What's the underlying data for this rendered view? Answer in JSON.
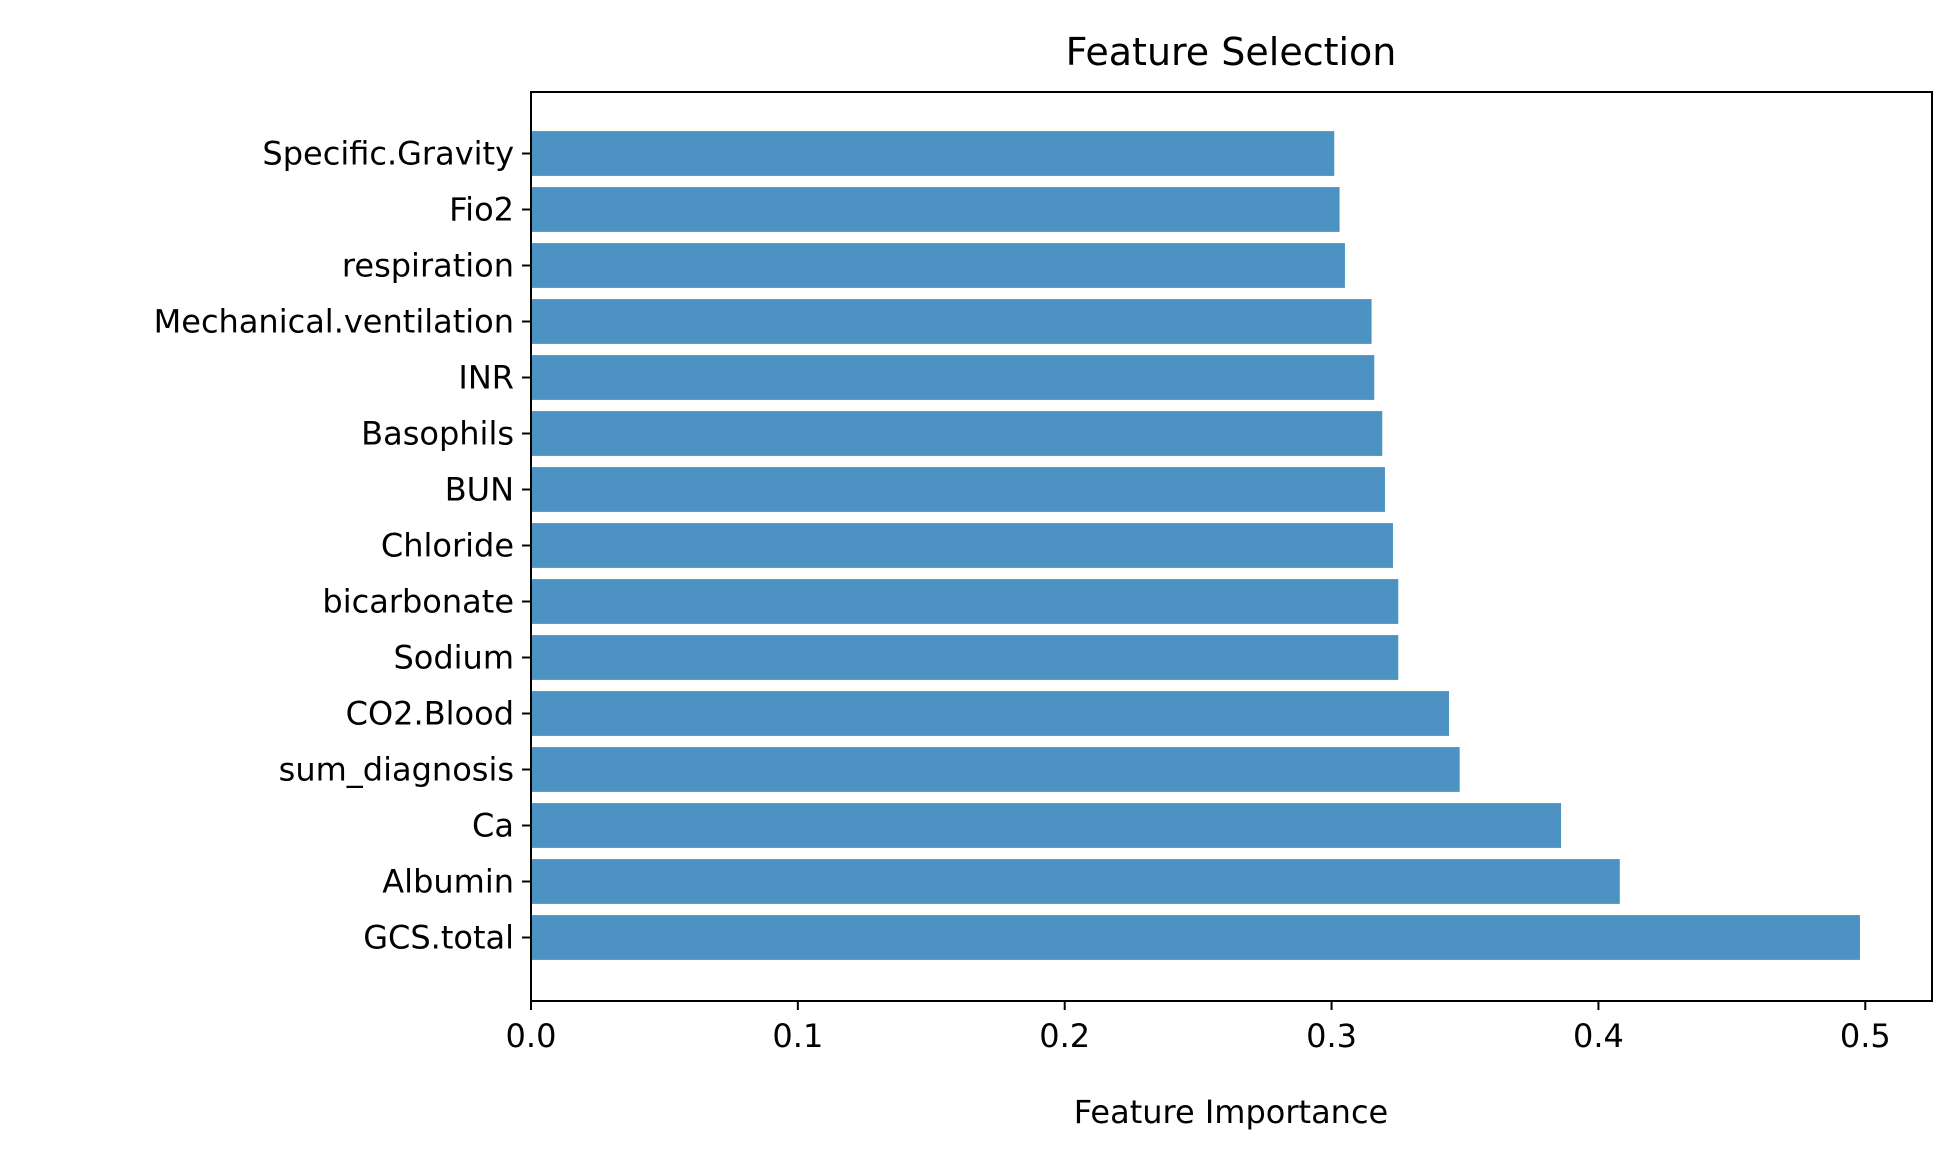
{
  "chart_data": {
    "type": "bar",
    "orientation": "horizontal",
    "title": "Feature Selection",
    "xlabel": "Feature Importance",
    "ylabel": "",
    "xlim": [
      0,
      0.525
    ],
    "xticks": [
      0.0,
      0.1,
      0.2,
      0.3,
      0.4,
      0.5
    ],
    "xtick_labels": [
      "0.0",
      "0.1",
      "0.2",
      "0.3",
      "0.4",
      "0.5"
    ],
    "grid": false,
    "bar_color": "#4c92c3",
    "categories": [
      "GCS.total",
      "Albumin",
      "Ca",
      "sum_diagnosis",
      "CO2.Blood",
      "Sodium",
      "bicarbonate",
      "Chloride",
      "BUN",
      "Basophils",
      "INR",
      "Mechanical.ventilation",
      "respiration",
      "Fio2",
      "Specific.Gravity"
    ],
    "values": [
      0.498,
      0.408,
      0.386,
      0.348,
      0.344,
      0.325,
      0.325,
      0.323,
      0.32,
      0.319,
      0.316,
      0.315,
      0.305,
      0.303,
      0.301
    ]
  }
}
